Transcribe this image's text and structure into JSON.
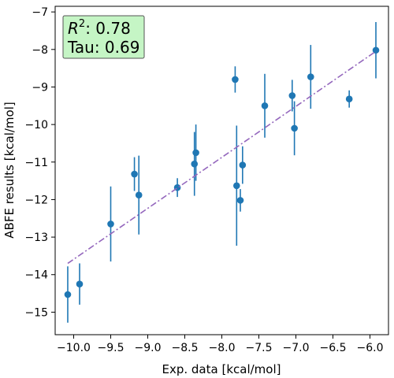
{
  "chart_data": {
    "type": "scatter",
    "xlabel": "Exp. data [kcal/mol]",
    "ylabel": "ABFE results [kcal/mol]",
    "xlim": [
      -10.25,
      -5.75
    ],
    "ylim": [
      -15.6,
      -6.85
    ],
    "xticks": [
      -10.0,
      -9.5,
      -9.0,
      -8.5,
      -8.0,
      -7.5,
      -7.0,
      -6.5,
      -6.0
    ],
    "xtick_labels": [
      "−10.0",
      "−9.5",
      "−9.0",
      "−8.5",
      "−8.0",
      "−7.5",
      "−7.0",
      "−6.5",
      "−6.0"
    ],
    "yticks": [
      -15,
      -14,
      -13,
      -12,
      -11,
      -10,
      -9,
      -8,
      -7
    ],
    "ytick_labels": [
      "−15",
      "−14",
      "−13",
      "−12",
      "−11",
      "−10",
      "−9",
      "−8",
      "−7"
    ],
    "grid": false,
    "points": [
      {
        "x": -10.08,
        "y": -14.53,
        "err": 0.75
      },
      {
        "x": -9.92,
        "y": -14.25,
        "err": 0.55
      },
      {
        "x": -9.5,
        "y": -12.65,
        "err": 1.0
      },
      {
        "x": -9.18,
        "y": -11.32,
        "err": 0.45
      },
      {
        "x": -9.12,
        "y": -11.88,
        "err": 1.05
      },
      {
        "x": -8.6,
        "y": -11.68,
        "err": 0.25
      },
      {
        "x": -8.37,
        "y": -11.05,
        "err": 0.85
      },
      {
        "x": -8.35,
        "y": -10.75,
        "err": 0.75
      },
      {
        "x": -7.82,
        "y": -8.8,
        "err": 0.35
      },
      {
        "x": -7.8,
        "y": -11.63,
        "err": 1.6
      },
      {
        "x": -7.75,
        "y": -12.02,
        "err": 0.3
      },
      {
        "x": -7.72,
        "y": -11.08,
        "err": 0.5
      },
      {
        "x": -7.42,
        "y": -9.5,
        "err": 0.85
      },
      {
        "x": -7.05,
        "y": -9.23,
        "err": 0.42
      },
      {
        "x": -7.02,
        "y": -10.1,
        "err": 0.72
      },
      {
        "x": -6.8,
        "y": -8.73,
        "err": 0.85
      },
      {
        "x": -6.28,
        "y": -9.32,
        "err": 0.23
      },
      {
        "x": -5.92,
        "y": -8.02,
        "err": 0.75
      }
    ],
    "fit_line": {
      "x": [
        -10.08,
        -5.92
      ],
      "y": [
        -13.7,
        -8.05
      ]
    },
    "colors": {
      "points": "#1f77b4",
      "fit_line": "#9467bd",
      "stats_box_fill": "#c5f5c5",
      "stats_box_edge": "#555555"
    },
    "stats_box": {
      "r2_value": "0.78",
      "tau_label": "Tau: 0.69",
      "position": "top-left"
    }
  }
}
